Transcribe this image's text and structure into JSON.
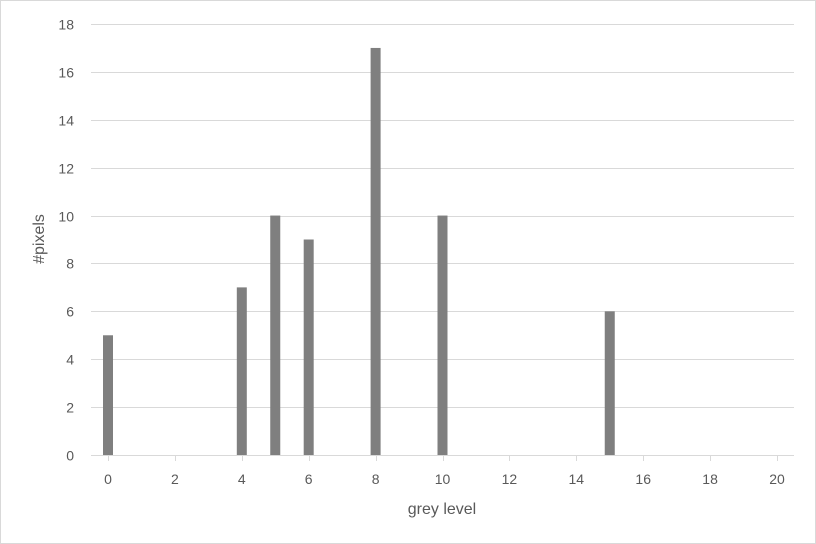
{
  "chart_data": {
    "type": "bar",
    "title": "",
    "xlabel": "grey level",
    "ylabel": "#pixels",
    "x": [
      0,
      4,
      5,
      6,
      8,
      10,
      15
    ],
    "values": [
      5,
      7,
      10,
      9,
      17,
      10,
      6
    ],
    "xlim": [
      0,
      20
    ],
    "ylim": [
      0,
      18
    ],
    "x_ticks": [
      0,
      2,
      4,
      6,
      8,
      10,
      12,
      14,
      16,
      18,
      20
    ],
    "y_ticks": [
      0,
      2,
      4,
      6,
      8,
      10,
      12,
      14,
      16,
      18
    ],
    "grid": "horizontal",
    "legend": "none",
    "bar_color": "#7f7f7f",
    "grid_color": "#d9d9d9"
  }
}
